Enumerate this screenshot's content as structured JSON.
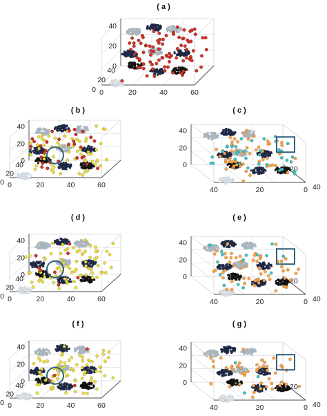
{
  "figure": {
    "colors": {
      "red": "#d8342a",
      "yellow": "#e2e03c",
      "orange": "#f4a646",
      "cyan": "#33c7c7",
      "navy": "#1e2844",
      "black": "#111111",
      "gray": "#a9b5bd",
      "light_gray": "#d4dbe0",
      "marker_blue": "#2f5f79",
      "axis": "#4a4a4a",
      "grid": "#d8d8d8"
    }
  },
  "chart_data": [
    {
      "type": "scatter",
      "panel_label": "( a )",
      "projection": "3d",
      "title": "",
      "xlabel": "",
      "ylabel": "",
      "zlabel": "",
      "x_ticks": [
        "0",
        "20",
        "40",
        "60"
      ],
      "y_ticks": [
        "0",
        "20",
        "40"
      ],
      "z_ticks": [
        "0",
        "20",
        "40"
      ],
      "series": [
        {
          "color_name": "red",
          "count": 90,
          "spread": "diffuse, center of cube"
        },
        {
          "color_name": "navy",
          "count": 7,
          "spread": "tight blobs"
        },
        {
          "color_name": "black",
          "count": 3,
          "spread": "tight blobs"
        },
        {
          "color_name": "gray",
          "count": 4,
          "spread": "tight blobs"
        }
      ]
    },
    {
      "type": "scatter",
      "panel_label": "( b )",
      "projection": "3d",
      "x_ticks": [
        "0",
        "20",
        "40",
        "60"
      ],
      "y_ticks": [
        "0",
        "20",
        "40"
      ],
      "z_ticks": [
        "0",
        "20",
        "40"
      ],
      "marker": "circle",
      "series": [
        {
          "color_name": "yellow",
          "count": 60
        },
        {
          "color_name": "red",
          "count": 30
        },
        {
          "color_name": "navy",
          "count": 7
        },
        {
          "color_name": "black",
          "count": 3
        },
        {
          "color_name": "gray",
          "count": 5
        }
      ]
    },
    {
      "type": "scatter",
      "panel_label": "( c )",
      "projection": "3d",
      "x_ticks": [
        "40",
        "20",
        "0"
      ],
      "y_ticks": [
        "20",
        "40"
      ],
      "z_ticks": [
        "0",
        "20",
        "40"
      ],
      "marker": "square",
      "series": [
        {
          "color_name": "orange",
          "count": 55
        },
        {
          "color_name": "cyan",
          "count": 35
        },
        {
          "color_name": "navy",
          "count": 5
        },
        {
          "color_name": "black",
          "count": 4
        },
        {
          "color_name": "gray",
          "count": 5
        }
      ]
    },
    {
      "type": "scatter",
      "panel_label": "( d )",
      "projection": "3d",
      "x_ticks": [
        "0",
        "20",
        "40",
        "60"
      ],
      "y_ticks": [
        "0",
        "20",
        "40"
      ],
      "z_ticks": [
        "0",
        "20",
        "40"
      ],
      "marker": "circle",
      "series": [
        {
          "color_name": "yellow",
          "count": 75
        },
        {
          "color_name": "red",
          "count": 8
        },
        {
          "color_name": "navy",
          "count": 7
        },
        {
          "color_name": "black",
          "count": 3
        },
        {
          "color_name": "gray",
          "count": 5
        }
      ]
    },
    {
      "type": "scatter",
      "panel_label": "( e )",
      "projection": "3d",
      "x_ticks": [
        "40",
        "20",
        "0"
      ],
      "y_ticks": [
        "20",
        "40"
      ],
      "z_ticks": [
        "0",
        "20",
        "40"
      ],
      "marker": "square",
      "series": [
        {
          "color_name": "orange",
          "count": 60
        },
        {
          "color_name": "cyan",
          "count": 15
        },
        {
          "color_name": "navy",
          "count": 5
        },
        {
          "color_name": "black",
          "count": 4
        },
        {
          "color_name": "gray",
          "count": 5
        }
      ]
    },
    {
      "type": "scatter",
      "panel_label": "( f )",
      "projection": "3d",
      "x_ticks": [
        "0",
        "20",
        "40",
        "60"
      ],
      "y_ticks": [
        "0",
        "20",
        "40"
      ],
      "z_ticks": [
        "0",
        "20",
        "40"
      ],
      "marker": "circle",
      "series": [
        {
          "color_name": "yellow",
          "count": 75
        },
        {
          "color_name": "red",
          "count": 4
        },
        {
          "color_name": "navy",
          "count": 7
        },
        {
          "color_name": "black",
          "count": 3
        },
        {
          "color_name": "gray",
          "count": 5
        }
      ]
    },
    {
      "type": "scatter",
      "panel_label": "( g )",
      "projection": "3d",
      "x_ticks": [
        "40",
        "20",
        "0"
      ],
      "y_ticks": [
        "20",
        "40"
      ],
      "z_ticks": [
        "0",
        "20",
        "40"
      ],
      "marker": "square",
      "series": [
        {
          "color_name": "orange",
          "count": 50
        },
        {
          "color_name": "cyan",
          "count": 3
        },
        {
          "color_name": "navy",
          "count": 5
        },
        {
          "color_name": "black",
          "count": 4
        },
        {
          "color_name": "gray",
          "count": 5
        }
      ]
    }
  ]
}
